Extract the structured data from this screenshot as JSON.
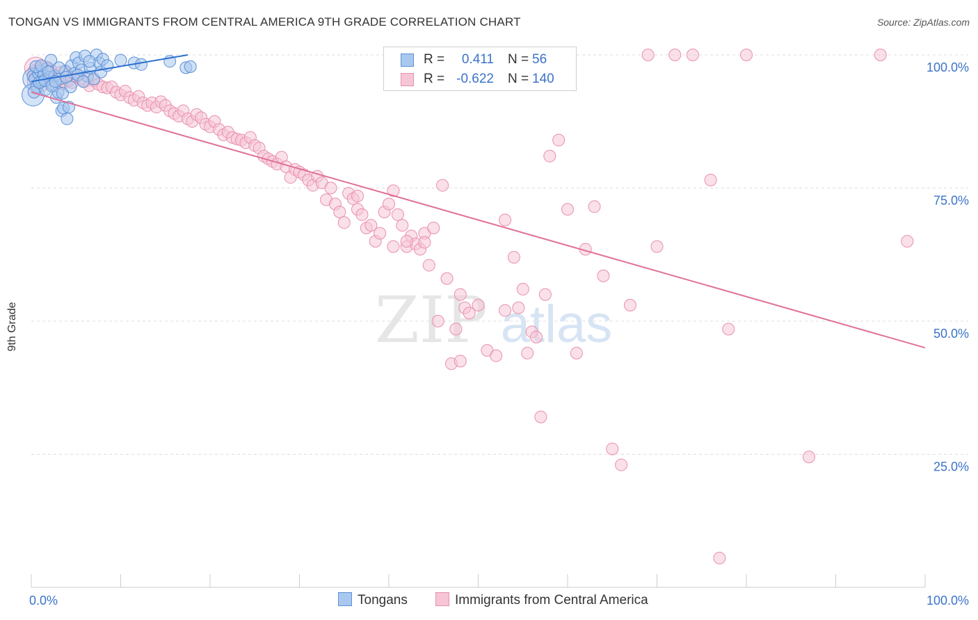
{
  "title": "TONGAN VS IMMIGRANTS FROM CENTRAL AMERICA 9TH GRADE CORRELATION CHART",
  "source": "Source: ZipAtlas.com",
  "watermark": {
    "zip": "ZIP",
    "atlas": "atlas"
  },
  "colors": {
    "blue_fill": "#a9c8ef",
    "blue_stroke": "#5b8fd6",
    "blue_line": "#2a6fcf",
    "pink_fill": "#f6c6d6",
    "pink_stroke": "#e88fae",
    "pink_line": "#e0709a",
    "grid": "#dcdcdc",
    "axis_text": "#3b73c9"
  },
  "legend": {
    "r_label": "R =",
    "n_label": "N =",
    "series": [
      {
        "name": "Tongans",
        "r": "0.411",
        "n": "56"
      },
      {
        "name": "Immigrants from Central America",
        "r": "-0.622",
        "n": "140"
      }
    ]
  },
  "chart_data": {
    "type": "scatter",
    "title": "TONGAN VS IMMIGRANTS FROM CENTRAL AMERICA 9TH GRADE CORRELATION CHART",
    "xlabel": "",
    "ylabel": "9th Grade",
    "xlim": [
      0,
      100
    ],
    "ylim": [
      0,
      100
    ],
    "x_tick_labels": [
      "0.0%",
      "100.0%"
    ],
    "y_tick_labels": [
      "100.0%",
      "75.0%",
      "50.0%",
      "25.0%"
    ],
    "y_ticks": [
      100,
      75,
      50,
      25
    ],
    "series": [
      {
        "name": "Tongans",
        "r": 0.411,
        "n": 56,
        "trend": {
          "x": [
            0,
            17.5
          ],
          "y": [
            95.0,
            100.0
          ]
        },
        "points": [
          [
            0.2,
            96.0
          ],
          [
            0.4,
            95.5
          ],
          [
            0.6,
            94.0
          ],
          [
            0.8,
            96.5
          ],
          [
            1.0,
            97.0
          ],
          [
            1.2,
            95.0
          ],
          [
            1.4,
            96.2
          ],
          [
            1.6,
            93.5
          ],
          [
            1.8,
            97.5
          ],
          [
            2.0,
            95.8
          ],
          [
            2.2,
            99.0
          ],
          [
            2.4,
            94.5
          ],
          [
            2.6,
            96.0
          ],
          [
            2.8,
            92.0
          ],
          [
            3.0,
            93.0
          ],
          [
            3.2,
            95.5
          ],
          [
            3.4,
            89.5
          ],
          [
            3.6,
            90.0
          ],
          [
            3.8,
            97.0
          ],
          [
            4.0,
            88.0
          ],
          [
            4.2,
            90.2
          ],
          [
            4.5,
            98.0
          ],
          [
            4.8,
            96.5
          ],
          [
            5.0,
            99.5
          ],
          [
            5.3,
            98.5
          ],
          [
            5.6,
            97.2
          ],
          [
            6.0,
            99.8
          ],
          [
            6.3,
            96.0
          ],
          [
            6.6,
            97.5
          ],
          [
            7.0,
            95.5
          ],
          [
            7.3,
            100.0
          ],
          [
            7.6,
            98.5
          ],
          [
            8.0,
            99.2
          ],
          [
            0.3,
            93.0
          ],
          [
            0.5,
            97.8
          ],
          [
            0.9,
            94.8
          ],
          [
            1.1,
            98.0
          ],
          [
            1.5,
            95.2
          ],
          [
            1.9,
            96.8
          ],
          [
            2.3,
            94.2
          ],
          [
            2.7,
            95.0
          ],
          [
            3.1,
            97.6
          ],
          [
            3.5,
            92.8
          ],
          [
            3.9,
            95.8
          ],
          [
            4.4,
            94.0
          ],
          [
            5.2,
            96.2
          ],
          [
            5.8,
            95.0
          ],
          [
            6.5,
            98.8
          ],
          [
            7.8,
            96.8
          ],
          [
            8.5,
            98.0
          ],
          [
            10.0,
            99.0
          ],
          [
            11.5,
            98.5
          ],
          [
            12.3,
            98.2
          ],
          [
            15.5,
            98.8
          ],
          [
            17.3,
            97.6
          ],
          [
            17.8,
            97.8
          ]
        ],
        "large_points": [
          [
            0.3,
            95.5
          ],
          [
            0.2,
            92.5
          ]
        ]
      },
      {
        "name": "Immigrants from Central America",
        "r": -0.622,
        "n": 140,
        "trend": {
          "x": [
            0,
            100
          ],
          "y": [
            93.0,
            45.0
          ]
        },
        "points": [
          [
            0.3,
            97.0
          ],
          [
            0.6,
            96.0
          ],
          [
            1.0,
            97.5
          ],
          [
            1.4,
            95.8
          ],
          [
            1.8,
            96.5
          ],
          [
            2.2,
            97.2
          ],
          [
            2.6,
            96.2
          ],
          [
            3.0,
            95.0
          ],
          [
            3.4,
            94.5
          ],
          [
            3.8,
            96.8
          ],
          [
            4.2,
            95.2
          ],
          [
            4.6,
            94.8
          ],
          [
            5.0,
            96.0
          ],
          [
            5.5,
            95.5
          ],
          [
            6.0,
            95.0
          ],
          [
            6.5,
            94.2
          ],
          [
            7.0,
            95.2
          ],
          [
            7.5,
            94.5
          ],
          [
            8.0,
            94.0
          ],
          [
            8.5,
            93.8
          ],
          [
            9.0,
            94.0
          ],
          [
            9.5,
            93.0
          ],
          [
            10.0,
            92.5
          ],
          [
            10.5,
            93.2
          ],
          [
            11.0,
            92.0
          ],
          [
            11.5,
            91.5
          ],
          [
            12.0,
            92.2
          ],
          [
            12.5,
            91.0
          ],
          [
            13.0,
            90.5
          ],
          [
            13.5,
            91.0
          ],
          [
            14.0,
            90.2
          ],
          [
            14.5,
            91.2
          ],
          [
            15.0,
            90.5
          ],
          [
            15.5,
            89.5
          ],
          [
            16.0,
            89.0
          ],
          [
            16.5,
            88.5
          ],
          [
            17.0,
            89.5
          ],
          [
            17.5,
            88.0
          ],
          [
            18.0,
            87.5
          ],
          [
            18.5,
            88.8
          ],
          [
            19.0,
            88.2
          ],
          [
            19.5,
            87.0
          ],
          [
            20.0,
            86.5
          ],
          [
            20.5,
            87.5
          ],
          [
            21.0,
            86.0
          ],
          [
            21.5,
            85.0
          ],
          [
            22.0,
            85.5
          ],
          [
            22.5,
            84.5
          ],
          [
            23.0,
            84.2
          ],
          [
            23.5,
            84.0
          ],
          [
            24.0,
            83.5
          ],
          [
            24.5,
            84.5
          ],
          [
            25.0,
            83.0
          ],
          [
            25.5,
            82.5
          ],
          [
            26.0,
            81.0
          ],
          [
            26.5,
            80.5
          ],
          [
            27.0,
            80.0
          ],
          [
            27.5,
            79.5
          ],
          [
            28.0,
            80.8
          ],
          [
            28.5,
            79.0
          ],
          [
            29.0,
            77.0
          ],
          [
            29.5,
            78.5
          ],
          [
            30.0,
            78.0
          ],
          [
            30.5,
            77.5
          ],
          [
            31.0,
            76.5
          ],
          [
            31.5,
            75.5
          ],
          [
            32.0,
            77.2
          ],
          [
            32.5,
            76.0
          ],
          [
            33.0,
            72.8
          ],
          [
            33.5,
            75.0
          ],
          [
            34.0,
            72.0
          ],
          [
            34.5,
            70.5
          ],
          [
            35.0,
            68.5
          ],
          [
            35.5,
            74.0
          ],
          [
            36.0,
            73.0
          ],
          [
            36.5,
            71.0
          ],
          [
            37.0,
            70.0
          ],
          [
            37.5,
            67.5
          ],
          [
            38.0,
            68.0
          ],
          [
            38.5,
            65.0
          ],
          [
            39.0,
            66.5
          ],
          [
            39.5,
            70.5
          ],
          [
            40.0,
            72.0
          ],
          [
            40.5,
            74.5
          ],
          [
            41.0,
            70.0
          ],
          [
            41.5,
            68.0
          ],
          [
            42.0,
            64.0
          ],
          [
            42.5,
            66.0
          ],
          [
            43.0,
            64.5
          ],
          [
            43.5,
            63.5
          ],
          [
            44.0,
            66.5
          ],
          [
            44.5,
            60.5
          ],
          [
            45.0,
            67.5
          ],
          [
            45.5,
            50.0
          ],
          [
            46.0,
            75.5
          ],
          [
            46.5,
            58.0
          ],
          [
            47.0,
            42.0
          ],
          [
            47.5,
            48.5
          ],
          [
            48.0,
            55.0
          ],
          [
            48.5,
            52.5
          ],
          [
            49.0,
            51.5
          ],
          [
            50.0,
            53.0
          ],
          [
            51.0,
            44.5
          ],
          [
            52.0,
            43.5
          ],
          [
            53.0,
            69.0
          ],
          [
            54.0,
            62.0
          ],
          [
            55.0,
            56.0
          ],
          [
            56.0,
            48.0
          ],
          [
            57.0,
            32.0
          ],
          [
            58.0,
            81.0
          ],
          [
            59.0,
            84.0
          ],
          [
            60.0,
            71.0
          ],
          [
            61.0,
            44.0
          ],
          [
            62.0,
            63.5
          ],
          [
            63.0,
            71.5
          ],
          [
            64.0,
            58.5
          ],
          [
            65.0,
            26.0
          ],
          [
            66.0,
            23.0
          ],
          [
            67.0,
            53.0
          ],
          [
            69.0,
            100.0
          ],
          [
            70.0,
            64.0
          ],
          [
            72.0,
            100.0
          ],
          [
            74.0,
            100.0
          ],
          [
            76.0,
            76.5
          ],
          [
            77.0,
            5.5
          ],
          [
            78.0,
            48.5
          ],
          [
            80.0,
            100.0
          ],
          [
            87.0,
            24.5
          ],
          [
            95.0,
            100.0
          ],
          [
            98.0,
            65.0
          ],
          [
            36.5,
            73.5
          ],
          [
            40.5,
            64.0
          ],
          [
            42.0,
            65.0
          ],
          [
            44.0,
            64.8
          ],
          [
            48.0,
            42.5
          ],
          [
            53.0,
            52.0
          ],
          [
            54.5,
            52.5
          ],
          [
            55.5,
            44.0
          ],
          [
            56.5,
            47.0
          ],
          [
            57.5,
            55.0
          ]
        ],
        "large_points": [
          [
            0.5,
            97.5
          ],
          [
            1.5,
            96.8
          ],
          [
            3.5,
            95.8
          ],
          [
            0.8,
            95.0
          ]
        ]
      }
    ]
  }
}
